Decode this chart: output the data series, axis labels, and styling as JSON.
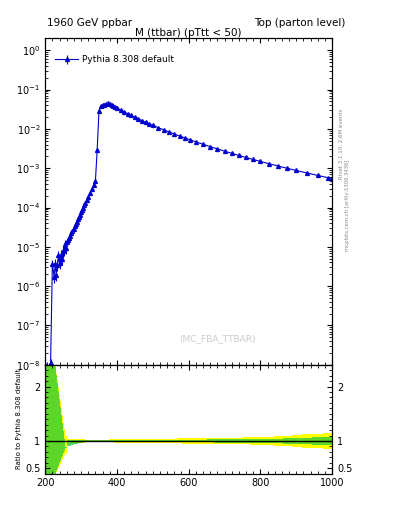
{
  "title_left": "1960 GeV ppbar",
  "title_right": "Top (parton level)",
  "main_title": "M (ttbar) (pTtt < 50)",
  "watermark": "(MC_FBA_TTBAR)",
  "right_label": "Rivet 3.1.10, 2.6M events",
  "arxiv_label": "mcplots.cern.ch [arXiv:1306.3436]",
  "legend_label": "Pythia 8.308 default",
  "line_color": "#0000cc",
  "marker": "^",
  "ratio_ylabel": "Ratio to Pythia 8.308 default",
  "xlim": [
    200,
    1000
  ],
  "ylim_main": [
    1e-08,
    2.0
  ],
  "background_color": "#ffffff",
  "grid_color": "#cccccc",
  "yellow_band_color": "#ffff00",
  "green_band_color": "#33cc33"
}
